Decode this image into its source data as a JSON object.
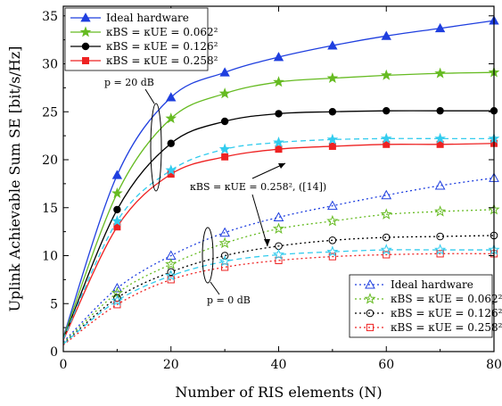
{
  "chart_data": {
    "type": "line",
    "xlabel": "Number of RIS elements (N)",
    "ylabel": "Uplink Achievable Sum SE [bit/s/Hz]",
    "xlim": [
      0,
      80
    ],
    "ylim": [
      0,
      36
    ],
    "xticks": [
      0,
      20,
      40,
      60,
      80
    ],
    "yticks": [
      0,
      5,
      10,
      15,
      20,
      25,
      30,
      35
    ],
    "grid": false,
    "series": [
      {
        "group": "p = 20 dB",
        "name": "Ideal hardware",
        "color": "#1f3fdf",
        "marker": "triangle",
        "style": "solid",
        "x": [
          0,
          10,
          20,
          30,
          40,
          50,
          60,
          70,
          80
        ],
        "y": [
          1.5,
          18.4,
          26.5,
          29.1,
          30.7,
          31.9,
          32.9,
          33.7,
          34.5
        ]
      },
      {
        "group": "p = 20 dB",
        "name": "κBS = κUE = 0.062²",
        "color": "#66bb22",
        "marker": "star",
        "style": "solid",
        "x": [
          0,
          10,
          20,
          30,
          40,
          50,
          60,
          70,
          80
        ],
        "y": [
          1.4,
          16.5,
          24.3,
          26.9,
          28.1,
          28.5,
          28.8,
          29.0,
          29.1
        ]
      },
      {
        "group": "p = 20 dB",
        "name": "κBS = κUE = 0.126²",
        "color": "#000000",
        "marker": "circle",
        "style": "solid",
        "x": [
          0,
          10,
          20,
          30,
          40,
          50,
          60,
          70,
          80
        ],
        "y": [
          1.3,
          14.8,
          21.7,
          24.0,
          24.8,
          25.0,
          25.1,
          25.1,
          25.1
        ]
      },
      {
        "group": "p = 20 dB",
        "name": "κBS = κUE = 0.258²",
        "color": "#ee2222",
        "marker": "square",
        "style": "solid",
        "x": [
          0,
          10,
          20,
          30,
          40,
          50,
          60,
          70,
          80
        ],
        "y": [
          1.2,
          13.0,
          18.5,
          20.3,
          21.1,
          21.4,
          21.6,
          21.6,
          21.7
        ]
      },
      {
        "group": "reference",
        "name": "κBS = κUE = 0.258², ([14])",
        "color": "#33ccee",
        "marker": "star",
        "style": "dashed",
        "x": [
          0,
          10,
          20,
          30,
          40,
          50,
          60,
          70,
          80
        ],
        "y": [
          1.3,
          13.6,
          18.9,
          21.1,
          21.8,
          22.1,
          22.2,
          22.2,
          22.2
        ]
      },
      {
        "group": "p = 0 dB",
        "name": "Ideal hardware",
        "color": "#1f3fdf",
        "marker": "triangle-open",
        "style": "dotted",
        "x": [
          0,
          10,
          20,
          30,
          40,
          50,
          60,
          70,
          80
        ],
        "y": [
          1.0,
          6.6,
          10.0,
          12.4,
          14.0,
          15.2,
          16.3,
          17.3,
          18.1
        ]
      },
      {
        "group": "p = 0 dB",
        "name": "κBS = κUE = 0.062²",
        "color": "#66bb22",
        "marker": "star-open",
        "style": "dotted",
        "x": [
          0,
          10,
          20,
          30,
          40,
          50,
          60,
          70,
          80
        ],
        "y": [
          0.9,
          6.1,
          9.1,
          11.3,
          12.8,
          13.6,
          14.3,
          14.6,
          14.8
        ]
      },
      {
        "group": "p = 0 dB",
        "name": "κBS = κUE = 0.126²",
        "color": "#000000",
        "marker": "circle-open",
        "style": "dotted",
        "x": [
          0,
          10,
          20,
          30,
          40,
          50,
          60,
          70,
          80
        ],
        "y": [
          0.8,
          5.6,
          8.3,
          10.0,
          11.0,
          11.6,
          11.9,
          12.0,
          12.1
        ]
      },
      {
        "group": "p = 0 dB",
        "name": "κBS = κUE = 0.258²",
        "color": "#ee2222",
        "marker": "square-open",
        "style": "dotted",
        "x": [
          0,
          10,
          20,
          30,
          40,
          50,
          60,
          70,
          80
        ],
        "y": [
          0.7,
          4.9,
          7.5,
          8.8,
          9.5,
          9.9,
          10.1,
          10.2,
          10.2
        ]
      },
      {
        "group": "reference",
        "name": "κBS = κUE = 0.258², ([14])",
        "color": "#33ccee",
        "marker": "star-open",
        "style": "dashed",
        "x": [
          0,
          10,
          20,
          30,
          40,
          50,
          60,
          70,
          80
        ],
        "y": [
          0.8,
          5.3,
          7.9,
          9.4,
          10.1,
          10.4,
          10.6,
          10.6,
          10.6
        ]
      }
    ],
    "legend_top": {
      "placement": "top-left",
      "entries": [
        {
          "label": "Ideal hardware",
          "color": "#1f3fdf",
          "marker": "triangle",
          "style": "solid"
        },
        {
          "label": "κBS = κUE = 0.062²",
          "color": "#66bb22",
          "marker": "star",
          "style": "solid"
        },
        {
          "label": "κBS = κUE = 0.126²",
          "color": "#000000",
          "marker": "circle",
          "style": "solid"
        },
        {
          "label": "κBS = κUE = 0.258²",
          "color": "#ee2222",
          "marker": "square",
          "style": "solid"
        }
      ]
    },
    "legend_bottom": {
      "placement": "bottom-right",
      "entries": [
        {
          "label": "Ideal hardware",
          "color": "#1f3fdf",
          "marker": "triangle-open",
          "style": "dotted"
        },
        {
          "label": "κBS = κUE = 0.062²",
          "color": "#66bb22",
          "marker": "star-open",
          "style": "dotted"
        },
        {
          "label": "κBS = κUE = 0.126²",
          "color": "#000000",
          "marker": "circle-open",
          "style": "dotted"
        },
        {
          "label": "κBS = κUE = 0.258²",
          "color": "#ee2222",
          "marker": "square-open",
          "style": "dotted"
        }
      ]
    },
    "annotations": {
      "p20": "p = 20 dB",
      "p0": "p = 0 dB",
      "reference": "κBS = κUE = 0.258², ([14])"
    }
  }
}
